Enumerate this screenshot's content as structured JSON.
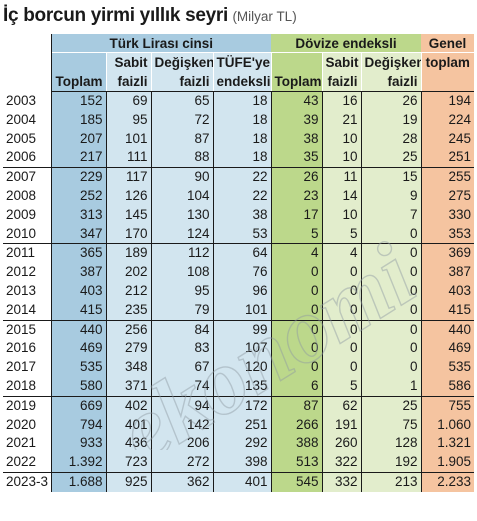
{
  "title": {
    "main": "İç borcun yirmi yıllık seyri",
    "unit": "(Milyar TL)"
  },
  "groups": {
    "turk_lirasi": "Türk Lirası cinsi",
    "dovize_endeksli": "Dövize endeksli",
    "genel": "Genel",
    "genel_2": "toplam"
  },
  "subheaders": {
    "tl_toplam": "Toplam",
    "tl_sabit_1": "Sabit",
    "tl_sabit_2": "faizli",
    "tl_degisken_1": "Değişken",
    "tl_degisken_2": "faizli",
    "tl_tufe_1": "TÜFE'ye",
    "tl_tufe_2": "endeksli",
    "dv_toplam": "Toplam",
    "dv_sabit_1": "Sabit",
    "dv_sabit_2": "faizli",
    "dv_degisken_1": "Değişken",
    "dv_degisken_2": "faizli"
  },
  "watermark_text": "ekonomi",
  "colors": {
    "tl_total": "#a8cbe0",
    "tl": "#d2e5ef",
    "dv_total": "#bcd88b",
    "dv": "#e2edcc",
    "genel": "#f5c4a0"
  },
  "rows": [
    [
      "2003",
      "152",
      "69",
      "65",
      "18",
      "43",
      "16",
      "26",
      "194"
    ],
    [
      "2004",
      "185",
      "95",
      "72",
      "18",
      "39",
      "21",
      "19",
      "224"
    ],
    [
      "2005",
      "207",
      "101",
      "87",
      "18",
      "38",
      "10",
      "28",
      "245"
    ],
    [
      "2006",
      "217",
      "111",
      "88",
      "18",
      "35",
      "10",
      "25",
      "251"
    ],
    [
      "2007",
      "229",
      "117",
      "90",
      "22",
      "26",
      "11",
      "15",
      "255"
    ],
    [
      "2008",
      "252",
      "126",
      "104",
      "22",
      "23",
      "14",
      "9",
      "275"
    ],
    [
      "2009",
      "313",
      "145",
      "130",
      "38",
      "17",
      "10",
      "7",
      "330"
    ],
    [
      "2010",
      "347",
      "170",
      "124",
      "53",
      "5",
      "5",
      "0",
      "353"
    ],
    [
      "2011",
      "365",
      "189",
      "112",
      "64",
      "4",
      "4",
      "0",
      "369"
    ],
    [
      "2012",
      "387",
      "202",
      "108",
      "76",
      "0",
      "0",
      "0",
      "387"
    ],
    [
      "2013",
      "403",
      "212",
      "95",
      "96",
      "0",
      "0",
      "0",
      "403"
    ],
    [
      "2014",
      "415",
      "235",
      "79",
      "101",
      "0",
      "0",
      "0",
      "415"
    ],
    [
      "2015",
      "440",
      "256",
      "84",
      "99",
      "0",
      "0",
      "0",
      "440"
    ],
    [
      "2016",
      "469",
      "279",
      "83",
      "107",
      "0",
      "0",
      "0",
      "469"
    ],
    [
      "2017",
      "535",
      "348",
      "67",
      "120",
      "0",
      "0",
      "0",
      "535"
    ],
    [
      "2018",
      "580",
      "371",
      "74",
      "135",
      "6",
      "5",
      "1",
      "586"
    ],
    [
      "2019",
      "669",
      "402",
      "94",
      "172",
      "87",
      "62",
      "25",
      "755"
    ],
    [
      "2020",
      "794",
      "401",
      "142",
      "251",
      "266",
      "191",
      "75",
      "1.060"
    ],
    [
      "2021",
      "933",
      "436",
      "206",
      "292",
      "388",
      "260",
      "128",
      "1.321"
    ],
    [
      "2022",
      "1.392",
      "723",
      "272",
      "398",
      "513",
      "322",
      "192",
      "1.905"
    ],
    [
      "2023-3",
      "1.688",
      "925",
      "362",
      "401",
      "545",
      "332",
      "213",
      "2.233"
    ]
  ]
}
